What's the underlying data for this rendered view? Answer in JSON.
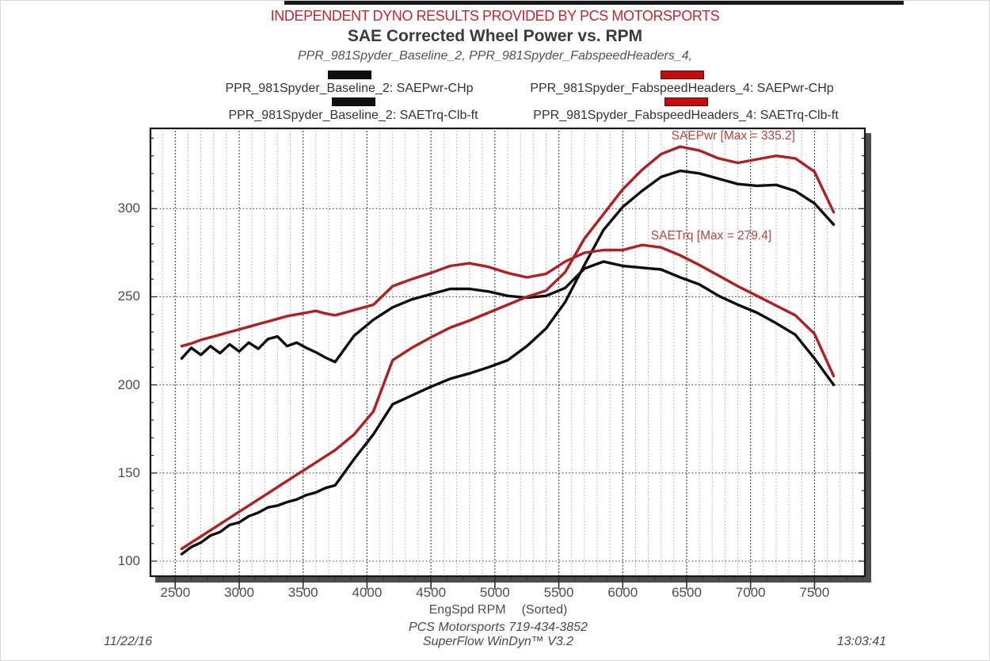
{
  "header": {
    "disclaimer": "INDEPENDENT DYNO RESULTS PROVIDED BY PCS MOTORSPORTS",
    "title": "SAE Corrected Wheel Power vs. RPM",
    "subtitle": "PPR_981Spyder_Baseline_2, PPR_981Spyder_FabspeedHeaders_4,"
  },
  "legend": {
    "items": [
      {
        "label": "PPR_981Spyder_Baseline_2: SAEPwr-CHp",
        "color": "#0e0e0e",
        "border": "#000000"
      },
      {
        "label": "PPR_981Spyder_FabspeedHeaders_4: SAEPwr-CHp",
        "color": "#c40d0d",
        "border": "#5a0505"
      },
      {
        "label": "PPR_981Spyder_Baseline_2: SAETrq-Clb-ft",
        "color": "#0e0e0e",
        "border": "#000000"
      },
      {
        "label": "PPR_981Spyder_FabspeedHeaders_4: SAETrq-Clb-ft",
        "color": "#c40d0d",
        "border": "#5a0505"
      }
    ]
  },
  "chart_data": {
    "type": "line",
    "title": "SAE Corrected Wheel Power vs. RPM",
    "xlabel": "EngSpd RPM",
    "xlabel_suffix": "(Sorted)",
    "grid": true,
    "legend_position": "top",
    "x_axis": {
      "min": 2300,
      "max": 7900,
      "major_tick_step": 500,
      "minor_grid_step": 100,
      "minor_tick_step": 125,
      "tick_labels": [
        2500,
        3000,
        3500,
        4000,
        4500,
        5000,
        5500,
        6000,
        6500,
        7000,
        7500
      ]
    },
    "y_axis": {
      "min": 91,
      "max": 346,
      "major_step": 50,
      "minor_tick_step": 10,
      "tick_labels": [
        100,
        150,
        200,
        250,
        300
      ]
    },
    "annotations": [
      {
        "text": "SAEPwr [Max = 335.2]",
        "rpm": 6380,
        "value": 341
      },
      {
        "text": "SAETrq [Max = 279.4]",
        "rpm": 6220,
        "value": 284.5
      }
    ],
    "x_rpm": [
      2550,
      2625,
      2700,
      2775,
      2850,
      2925,
      3000,
      3075,
      3150,
      3225,
      3300,
      3375,
      3450,
      3525,
      3600,
      3675,
      3750,
      3900,
      4050,
      4200,
      4350,
      4500,
      4650,
      4800,
      4950,
      5100,
      5250,
      5400,
      5550,
      5700,
      5850,
      6000,
      6150,
      6300,
      6450,
      6600,
      6750,
      6900,
      7050,
      7200,
      7350,
      7500,
      7650
    ],
    "series": [
      {
        "name": "PPR_981Spyder_Baseline_2: SAEPwr-CHp",
        "unit": "CHp",
        "color": "#0e0e0e",
        "max": 322,
        "values": [
          104,
          108,
          110.5,
          114.5,
          116.5,
          120.5,
          122,
          125.5,
          127.5,
          130.5,
          131.5,
          133.5,
          135,
          137.5,
          139,
          141.5,
          143,
          158,
          172,
          189,
          194,
          199,
          203.5,
          206.5,
          210,
          214,
          222,
          232,
          247,
          268,
          288,
          301,
          310,
          318,
          321.5,
          320,
          317,
          314,
          313,
          313.5,
          310,
          303,
          291
        ]
      },
      {
        "name": "PPR_981Spyder_FabspeedHeaders_4: SAEPwr-CHp",
        "unit": "CHp",
        "color": "#b02020",
        "max": 335.2,
        "values": [
          107,
          110.5,
          114,
          117.5,
          121,
          124.5,
          128,
          131.5,
          135,
          138.5,
          142,
          145.5,
          149,
          152.5,
          156,
          159.5,
          163,
          172,
          185,
          214,
          221,
          227,
          232.5,
          236.5,
          241,
          245.5,
          250,
          253.5,
          264,
          283,
          297,
          311,
          322,
          331,
          335.2,
          333,
          328.5,
          326,
          328,
          330,
          328.5,
          321,
          298
        ]
      },
      {
        "name": "PPR_981Spyder_Baseline_2: SAETrq-Clb-ft",
        "unit": "Clb-ft",
        "color": "#0e0e0e",
        "max": 270,
        "values": [
          215,
          221,
          217,
          222,
          218,
          223,
          219,
          224,
          220.5,
          226,
          227.5,
          222,
          224,
          221,
          218.5,
          215.5,
          213,
          228,
          237,
          244,
          248.5,
          251.5,
          254.5,
          254.5,
          253,
          250.5,
          249.5,
          250.5,
          255,
          266,
          270,
          267.5,
          266.5,
          265.5,
          261,
          257,
          250.5,
          245.5,
          241,
          235,
          228.5,
          215,
          200
        ]
      },
      {
        "name": "PPR_981Spyder_FabspeedHeaders_4: SAETrq-Clb-ft",
        "unit": "Clb-ft",
        "color": "#b02020",
        "max": 279.4,
        "values": [
          222,
          223.5,
          225.5,
          227,
          228.5,
          230,
          231.5,
          233,
          234.5,
          236,
          237.5,
          239,
          240,
          241,
          242,
          240.5,
          239.5,
          242.5,
          245.5,
          256,
          260,
          263.5,
          267.5,
          269,
          267,
          263.5,
          261,
          263,
          270,
          275,
          276.5,
          276.5,
          279.4,
          278,
          273.5,
          268,
          262,
          256,
          250.5,
          245,
          239.5,
          229,
          205
        ]
      }
    ]
  },
  "footer": {
    "date": "11/22/16",
    "center_line1": "PCS Motorsports 719-434-3852",
    "center_line2": "SuperFlow WinDyn™ V3.2",
    "time": "13:03:41"
  },
  "colors": {
    "curve_red": "#b02020",
    "curve_black": "#0e0e0e",
    "banner_red": "#c4262e",
    "annotation_red": "#b8433f",
    "axis_shadow": "#4d4d4d"
  }
}
